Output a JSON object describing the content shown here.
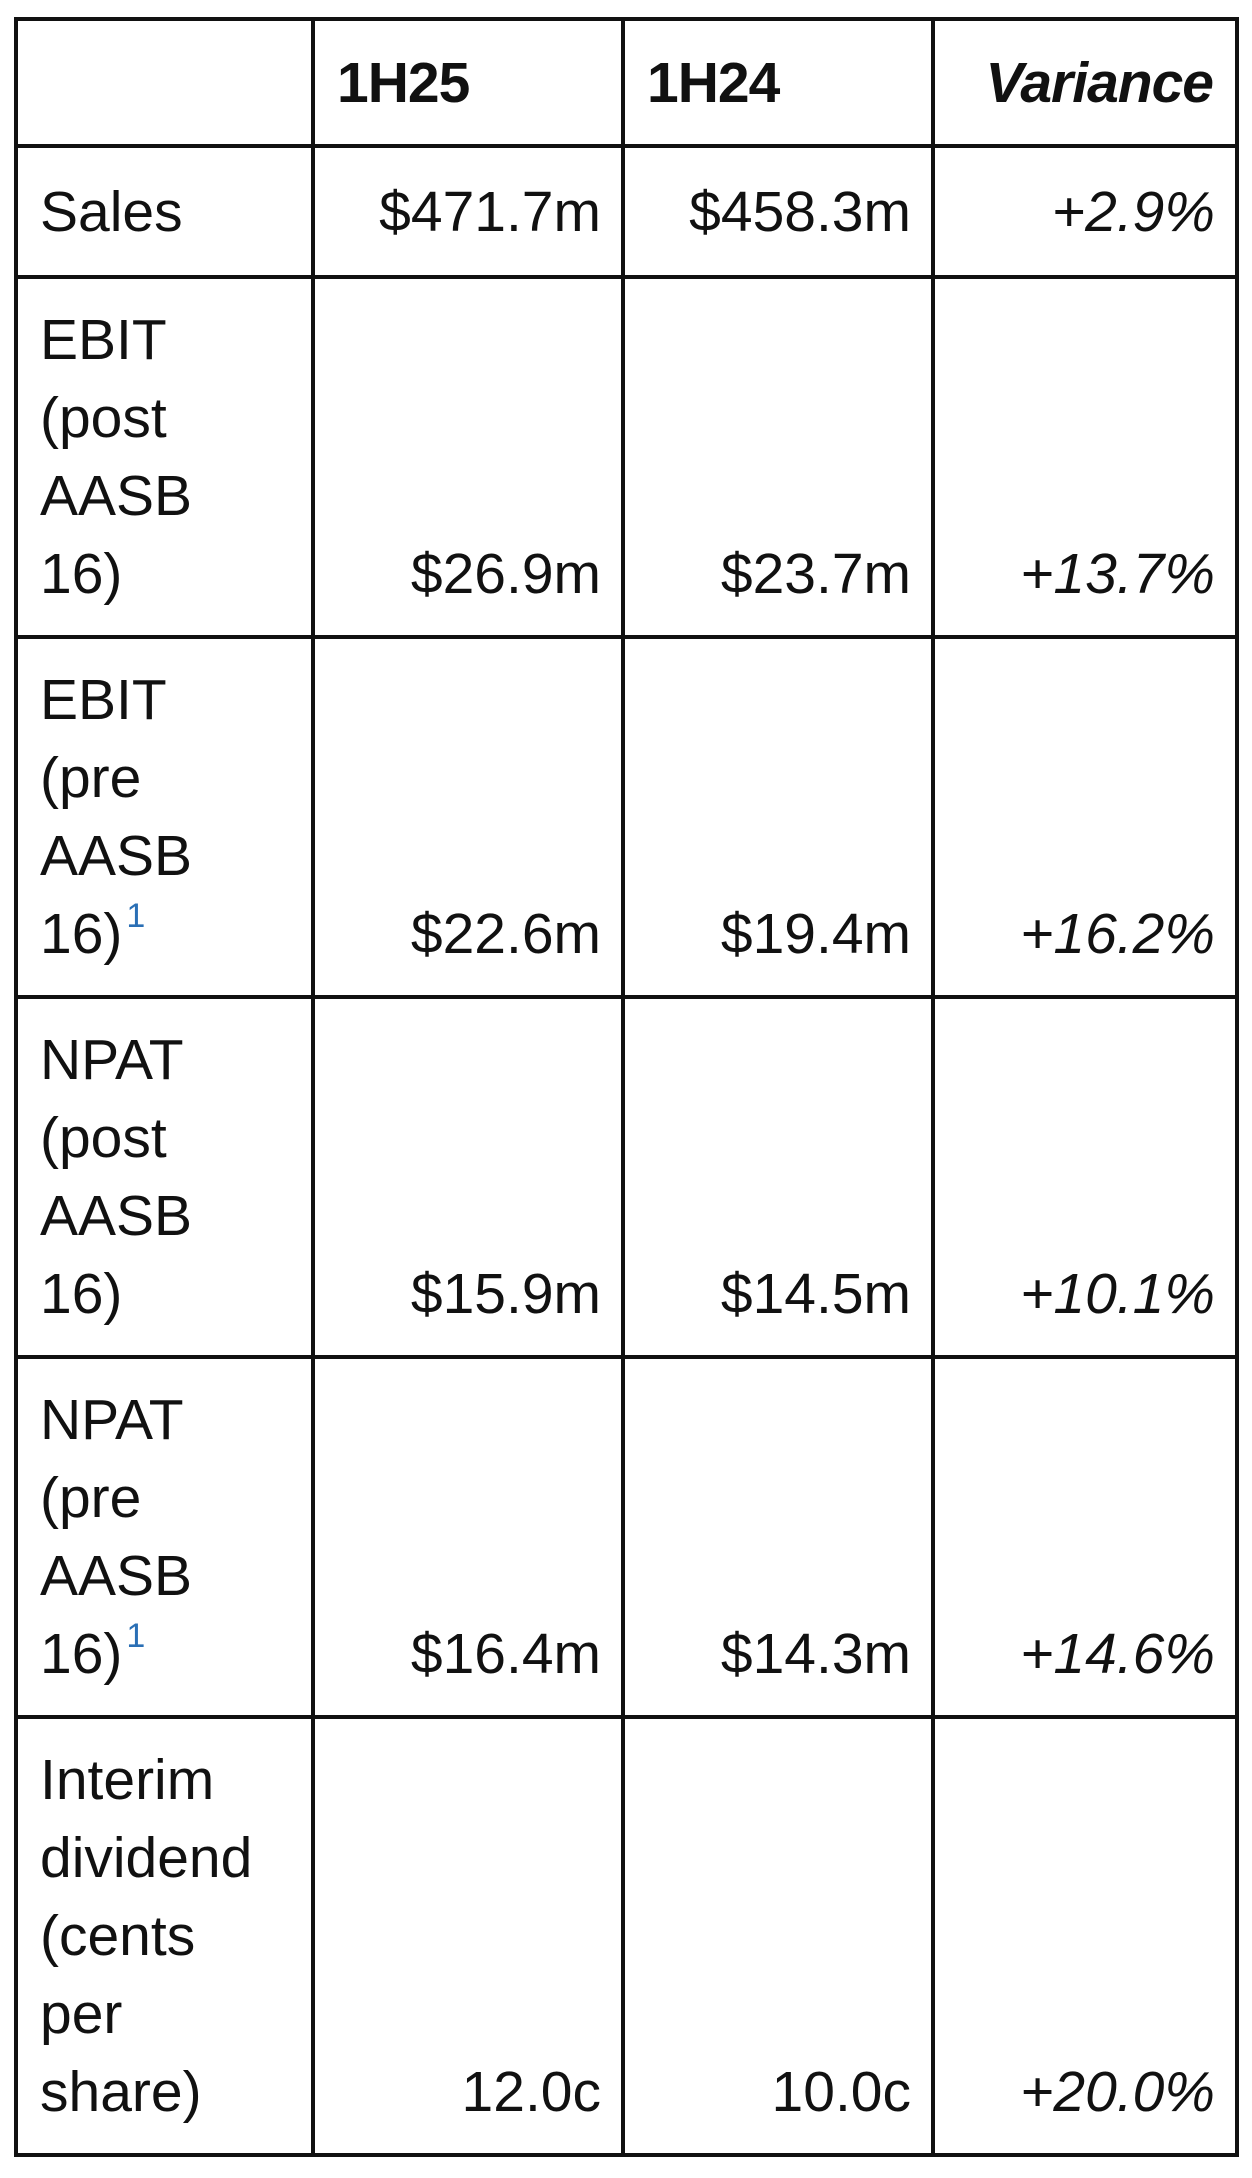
{
  "table": {
    "header": {
      "columns": [
        "1H25",
        "1H24",
        "Variance"
      ]
    },
    "rows": [
      {
        "label": "Sales",
        "values": [
          "$471.7m",
          "$458.3m",
          "+2.9%"
        ]
      },
      {
        "label": "EBIT (post AASB 16)",
        "values": [
          "$26.9m",
          "$23.7m",
          "+13.7%"
        ]
      },
      {
        "label": "EBIT (pre AASB 16)",
        "footnote": "1",
        "values": [
          "$22.6m",
          "$19.4m",
          "+16.2%"
        ]
      },
      {
        "label": "NPAT (post AASB 16)",
        "values": [
          "$15.9m",
          "$14.5m",
          "+10.1%"
        ]
      },
      {
        "label": "NPAT (pre AASB 16)",
        "footnote": "1",
        "values": [
          "$16.4m",
          "$14.3m",
          "+14.6%"
        ]
      },
      {
        "label": "Interim dividend (cents per share)",
        "values": [
          "12.0c",
          "10.0c",
          "+20.0%"
        ]
      }
    ]
  }
}
